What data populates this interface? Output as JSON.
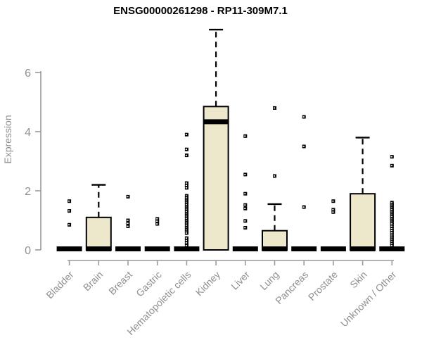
{
  "chart_data": {
    "type": "boxplot",
    "title": "ENSG00000261298 - RP11-309M7.1",
    "ylabel": "Expression",
    "xlabel": "",
    "yticks": [
      0,
      2,
      4,
      6
    ],
    "ylim": [
      0,
      7.6
    ],
    "grid": false,
    "legend": "none",
    "colors": {
      "box_fill": "#EDE7CC",
      "box_stroke": "#000000",
      "median": "#000000",
      "outlier": "#000000",
      "axis_line": "#9a9a9a",
      "axis_text": "#8f8f8f",
      "title_text": "#000000"
    },
    "categories": [
      "Bladder",
      "Brain",
      "Breast",
      "Gastric",
      "Hematopoietic cells",
      "Kidney",
      "Liver",
      "Lung",
      "Pancreas",
      "Prostate",
      "Skin",
      "Unknown / Other"
    ],
    "boxes": [
      {
        "category": "Bladder",
        "q1": 0,
        "median": 0,
        "q3": 0,
        "whisker_low": 0,
        "whisker_high": 0,
        "outliers": [
          1.65,
          1.32,
          0.85
        ]
      },
      {
        "category": "Brain",
        "q1": 0,
        "median": 0,
        "q3": 1.1,
        "whisker_low": 0,
        "whisker_high": 2.2,
        "outliers": []
      },
      {
        "category": "Breast",
        "q1": 0,
        "median": 0,
        "q3": 0,
        "whisker_low": 0,
        "whisker_high": 0,
        "outliers": [
          1.8,
          1.0,
          0.9,
          0.8
        ]
      },
      {
        "category": "Gastric",
        "q1": 0,
        "median": 0,
        "q3": 0,
        "whisker_low": 0,
        "whisker_high": 0,
        "outliers": [
          1.05,
          0.97,
          0.88
        ]
      },
      {
        "category": "Hematopoietic cells",
        "q1": 0,
        "median": 0,
        "q3": 0,
        "whisker_low": 0,
        "whisker_high": 0,
        "outliers": [
          3.9,
          3.4,
          3.2,
          2.26,
          2.18,
          2.1,
          1.83,
          1.77,
          1.71,
          1.65,
          1.59,
          1.53,
          1.47,
          1.41,
          1.35,
          1.29,
          1.23,
          1.17,
          1.11,
          1.05,
          0.99,
          0.93,
          0.87,
          0.81,
          0.75,
          0.69,
          0.63,
          0.57,
          0.4,
          0.32,
          0.24,
          0.15
        ]
      },
      {
        "category": "Kidney",
        "q1": 0,
        "median": 4.3,
        "q3": 4.85,
        "whisker_low": 0,
        "whisker_high": 7.45,
        "outliers": []
      },
      {
        "category": "Liver",
        "q1": 0,
        "median": 0,
        "q3": 0,
        "whisker_low": 0,
        "whisker_high": 0,
        "outliers": [
          3.85,
          2.55,
          1.9,
          1.52,
          1.4,
          0.98,
          0.75
        ]
      },
      {
        "category": "Lung",
        "q1": 0,
        "median": 0,
        "q3": 0.65,
        "whisker_low": 0,
        "whisker_high": 1.55,
        "outliers": [
          4.8,
          2.5
        ]
      },
      {
        "category": "Pancreas",
        "q1": 0,
        "median": 0,
        "q3": 0,
        "whisker_low": 0,
        "whisker_high": 0,
        "outliers": [
          4.5,
          3.5,
          1.45
        ]
      },
      {
        "category": "Prostate",
        "q1": 0,
        "median": 0,
        "q3": 0,
        "whisker_low": 0,
        "whisker_high": 0,
        "outliers": [
          1.65,
          1.36,
          1.28
        ]
      },
      {
        "category": "Skin",
        "q1": 0,
        "median": 0,
        "q3": 1.9,
        "whisker_low": 0,
        "whisker_high": 3.8,
        "outliers": []
      },
      {
        "category": "Unknown / Other",
        "q1": 0,
        "median": 0,
        "q3": 0,
        "whisker_low": 0,
        "whisker_high": 0,
        "outliers": [
          3.15,
          2.85,
          1.6,
          1.54,
          1.48,
          1.42,
          1.36,
          1.3,
          1.24,
          1.18,
          1.12,
          1.06,
          1.0,
          0.94,
          0.88,
          0.8,
          0.72,
          0.65,
          0.58,
          0.5,
          0.43,
          0.36,
          0.29,
          0.22,
          0.15
        ]
      }
    ]
  }
}
